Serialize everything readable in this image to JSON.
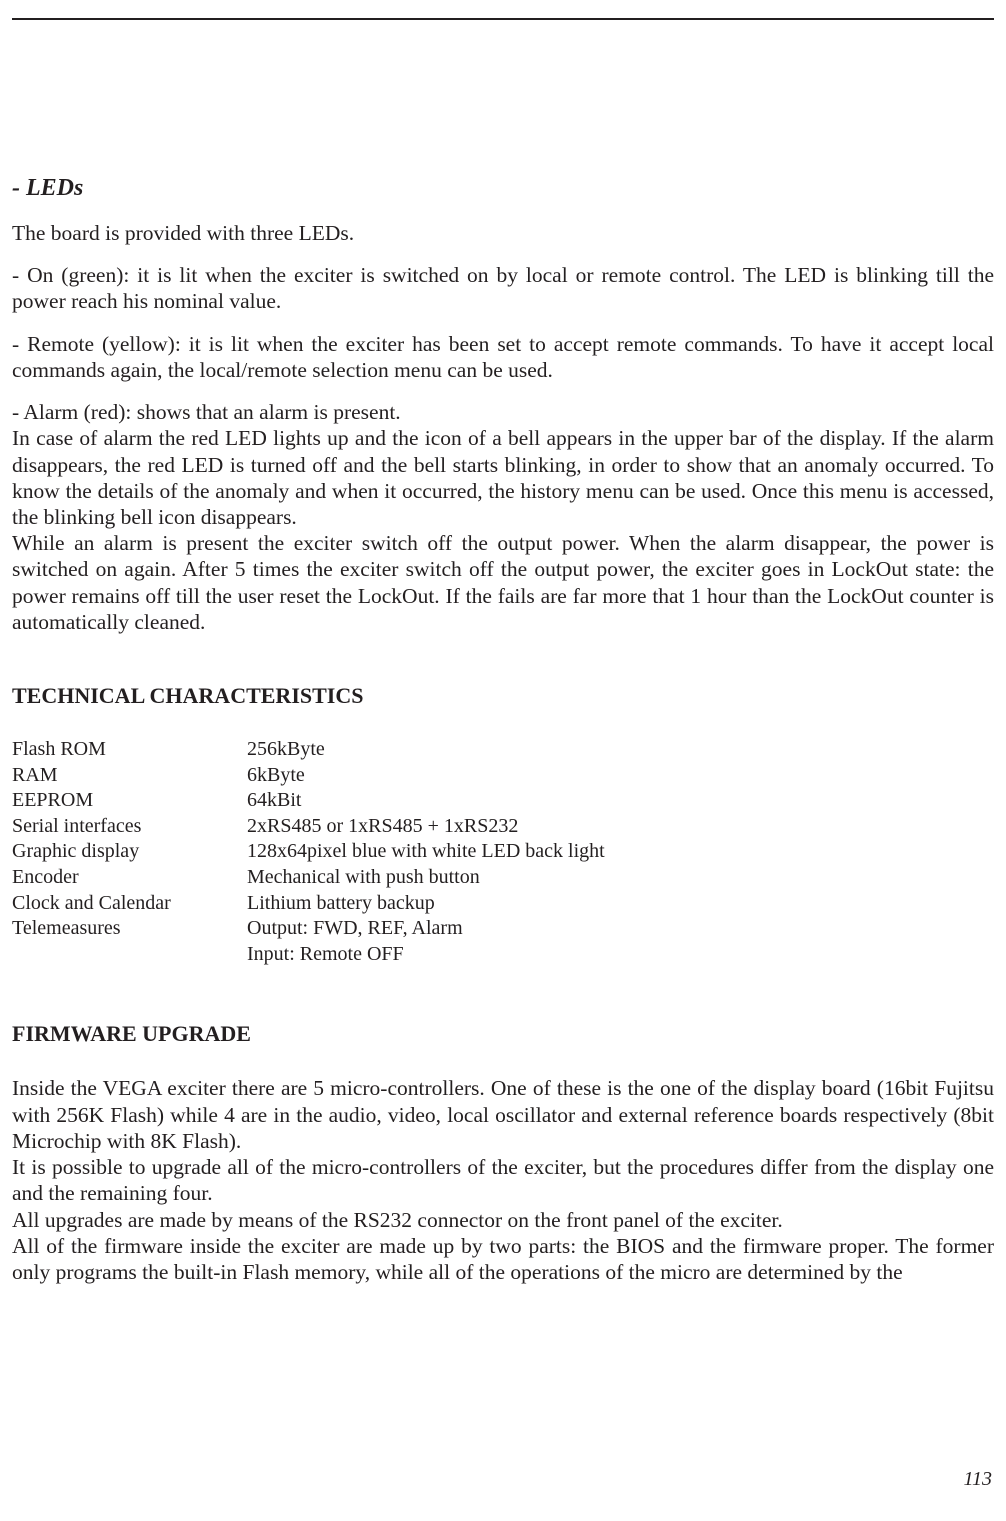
{
  "page_number": "113",
  "leds": {
    "heading": "- LEDs",
    "intro": "The board is provided with three LEDs.",
    "on": "- On (green): it is lit when the exciter is switched on by local or remote control. The LED is blinking till the power reach his nominal value.",
    "remote": "- Remote (yellow): it is lit when the exciter has been set to accept remote commands. To have it accept local commands again, the local/remote selection menu can be used.",
    "alarm_l1": "- Alarm (red): shows that an alarm is present.",
    "alarm_l2": "In case of alarm the red LED lights up and the icon of a bell appears in the upper bar of the display. If the alarm disappears, the red LED is turned off and the bell starts blinking, in order to show that an anomaly occurred. To know the details of the anomaly and when it occurred, the history menu can be used. Once this menu is accessed, the blinking bell icon disappears.",
    "alarm_l3": "While an alarm is present the exciter switch off the output power. When the alarm disappear, the power is switched on again. After 5 times the exciter switch off the output power, the exciter goes in LockOut state: the power remains off till the user reset the LockOut. If the fails are far more that 1 hour than the LockOut counter is automatically cleaned."
  },
  "tech": {
    "heading": "TECHNICAL CHARACTERISTICS",
    "rows": [
      {
        "label": "Flash ROM",
        "value": "256kByte"
      },
      {
        "label": "RAM",
        "value": "6kByte"
      },
      {
        "label": "EEPROM",
        "value": "64kBit"
      },
      {
        "label": "Serial interfaces",
        "value": "2xRS485 or 1xRS485 + 1xRS232"
      },
      {
        "label": "Graphic display",
        "value": "128x64pixel blue with white LED back light"
      },
      {
        "label": "Encoder",
        "value": "Mechanical with push button"
      },
      {
        "label": "Clock and Calendar",
        "value": "Lithium battery backup"
      },
      {
        "label": "Telemeasures",
        "value": "Output: FWD, REF, Alarm"
      },
      {
        "label": "",
        "value": "Input: Remote OFF"
      }
    ]
  },
  "firmware": {
    "heading": "FIRMWARE UPGRADE",
    "p1": "Inside the VEGA exciter there are 5 micro-controllers. One of these is the one of the display board (16bit Fujitsu with 256K Flash) while 4 are in the audio, video, local oscillator and external reference boards respectively (8bit Microchip with 8K Flash).",
    "p2": "It is possible to upgrade all of the micro-controllers of the exciter, but the procedures differ from the display one and the remaining four.",
    "p3": "All upgrades are made by means of the RS232 connector on the front panel of the exciter.",
    "p4": "All of the firmware inside the exciter are made up by two parts: the BIOS and the firmware proper. The former only programs the built-in Flash memory, while all of the operations of the micro are determined by the"
  }
}
